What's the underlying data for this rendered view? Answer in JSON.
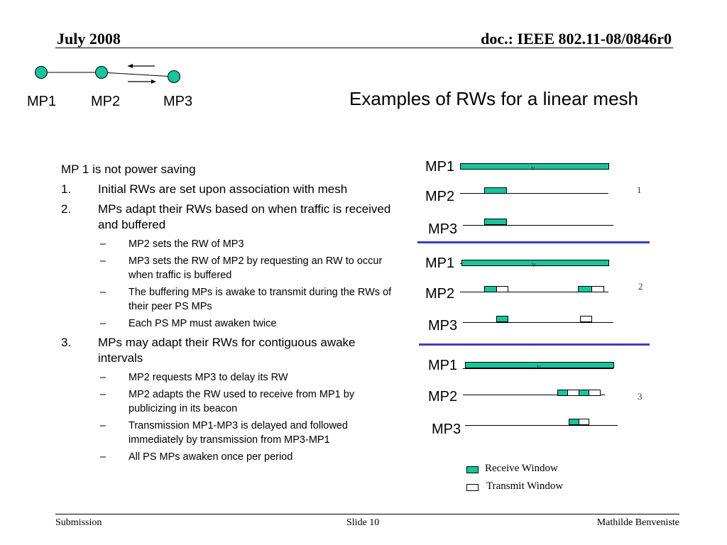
{
  "header": {
    "date": "July 2008",
    "doc": "doc.: IEEE 802.11-08/0846r0"
  },
  "topology": {
    "nodes": [
      "MP1",
      "MP2",
      "MP3"
    ],
    "node_color": "#19c49b"
  },
  "title": "Examples of RWs for a linear mesh",
  "bullets": {
    "intro": "MP 1 is not power saving",
    "items": [
      {
        "num": "1.",
        "text": "Initial RWs are set upon association with mesh",
        "subs": []
      },
      {
        "num": "2.",
        "text": "MPs adapt their RWs based on when traffic is received and buffered",
        "subs": [
          "MP2 sets the RW of MP3",
          "MP3 sets the RW of MP2 by requesting an RW to occur when traffic is buffered",
          "The buffering MPs is awake to transmit during the RWs of their peer PS MPs",
          "Each PS MP must awaken twice"
        ]
      },
      {
        "num": "3.",
        "text": "MPs may adapt their RWs for contiguous awake intervals",
        "subs": [
          "MP2 requests MP3 to delay its RW",
          "MP2 adapts the RW used to receive from MP1 by publicizing in its beacon",
          "Transmission MP1-MP3 is delayed and followed immediately by transmission from MP3-MP1",
          "All PS MPs awaken once per period"
        ]
      }
    ],
    "dash": "–"
  },
  "diagram": {
    "examples": [
      {
        "number": "1",
        "rows": [
          "MP1",
          "MP2",
          "MP3"
        ],
        "mark": "v"
      },
      {
        "number": "2",
        "rows": [
          "MP1",
          "MP2",
          "MP3"
        ],
        "mark": "v"
      },
      {
        "number": "3",
        "rows": [
          "MP1",
          "MP2",
          "MP3"
        ],
        "mark": "v"
      }
    ],
    "receive_color": "#19c49b",
    "separator_color": "#3b3fb8"
  },
  "legend": {
    "receive": "Receive Window",
    "transmit": "Transmit Window"
  },
  "footer": {
    "left": "Submission",
    "center": "Slide 10",
    "right": "Mathilde Benveniste"
  }
}
